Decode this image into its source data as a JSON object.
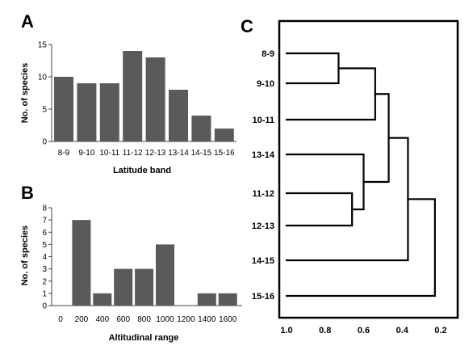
{
  "panels": {
    "a_letter": "A",
    "b_letter": "B",
    "c_letter": "C"
  },
  "chart_data": [
    {
      "type": "bar",
      "panel": "A",
      "categories": [
        "8-9",
        "9-10",
        "10-11",
        "11-12",
        "12-13",
        "13-14",
        "14-15",
        "15-16"
      ],
      "values": [
        10,
        9,
        9,
        14,
        13,
        8,
        4,
        2
      ],
      "xlabel": "Latitude band",
      "ylabel": "No. of species",
      "ylim": [
        0,
        15
      ],
      "yticks": [
        0,
        5,
        10,
        15
      ],
      "grid": false,
      "bar_color": "#5a5a5a"
    },
    {
      "type": "bar",
      "panel": "B",
      "x": [
        200,
        400,
        600,
        800,
        1000,
        1200,
        1400,
        1600
      ],
      "values": [
        7,
        1,
        3,
        3,
        5,
        0,
        1,
        1
      ],
      "xlabel": "Altitudinal range",
      "ylabel": "No. of species",
      "xlim": [
        0,
        1700
      ],
      "xticks": [
        0,
        200,
        400,
        600,
        800,
        1000,
        1200,
        1400,
        1600
      ],
      "ylim": [
        0,
        8
      ],
      "yticks": [
        0,
        1,
        2,
        3,
        4,
        5,
        6,
        7,
        8
      ],
      "grid": false,
      "bar_color": "#5a5a5a"
    },
    {
      "type": "dendrogram",
      "panel": "C",
      "leaves": [
        "8-9",
        "9-10",
        "10-11",
        "13-14",
        "11-12",
        "12-13",
        "14-15",
        "15-16"
      ],
      "xlim": [
        1.0,
        0.2
      ],
      "xticks": [
        1.0,
        0.8,
        0.6,
        0.4,
        0.2
      ],
      "xtick_labels": [
        "1.0",
        "0.8",
        "0.6",
        "0.4",
        "0.2"
      ],
      "merges": [
        {
          "left": "8-9",
          "right": "9-10",
          "height": 0.73
        },
        {
          "left": "11-12",
          "right": "12-13",
          "height": 0.66
        },
        {
          "left": "8-9|9-10",
          "right": "10-11",
          "height": 0.54
        },
        {
          "left": "13-14",
          "right": "11-12|12-13",
          "height": 0.6
        },
        {
          "left": "8-9|9-10|10-11",
          "right": "13-14|11-12|12-13",
          "height": 0.47
        },
        {
          "left": "8-9|9-10|10-11|13-14|11-12|12-13",
          "right": "14-15",
          "height": 0.37
        },
        {
          "left": "8-9|9-10|10-11|13-14|11-12|12-13|14-15",
          "right": "15-16",
          "height": 0.23
        }
      ]
    }
  ]
}
